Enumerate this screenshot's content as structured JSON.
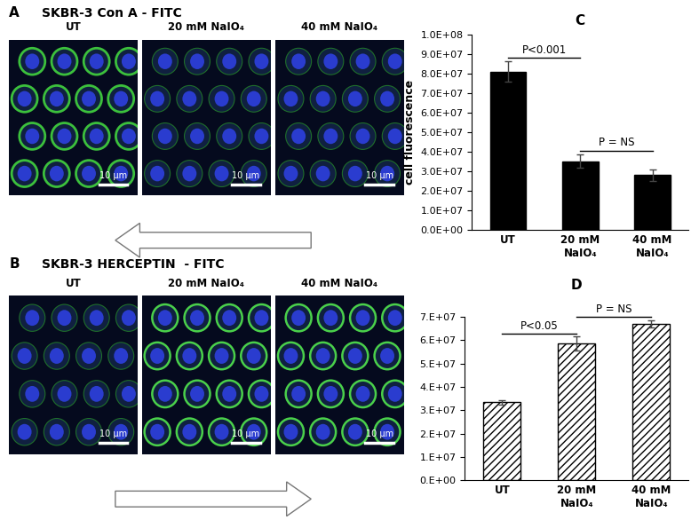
{
  "image_panels": [
    {
      "label": "A",
      "title": "SKBR-3 Con A - FITC",
      "images": [
        "UT",
        "20 mM NaIO₄",
        "40 mM NaIO₄"
      ],
      "scale_bar": "10 µm",
      "arrow": "left"
    },
    {
      "label": "B",
      "title": "SKBR-3 HERCEPTIN  - FITC",
      "images": [
        "UT",
        "20 mM NaIO₄",
        "40 mM NaIO₄"
      ],
      "scale_bar": "10 µm",
      "arrow": "right"
    }
  ],
  "chart_data": [
    {
      "type": "bar",
      "title": "C",
      "y_label": "cell fluorescence",
      "categories": [
        "UT",
        "20 mM NaIO₄",
        "40 mM NaIO₄"
      ],
      "values": [
        81000000,
        35000000,
        28000000
      ],
      "errors": [
        5000000,
        3500000,
        3000000
      ],
      "color": "#000000",
      "ylim": [
        0,
        100000000
      ],
      "yticks": [
        {
          "value": 0,
          "label": "0.0E+00"
        },
        {
          "value": 10000000,
          "label": "1.0E+07"
        },
        {
          "value": 20000000,
          "label": "2.0E+07"
        },
        {
          "value": 30000000,
          "label": "3.0E+07"
        },
        {
          "value": 40000000,
          "label": "4.0E+07"
        },
        {
          "value": 50000000,
          "label": "5.0E+07"
        },
        {
          "value": 60000000,
          "label": "6.0E+07"
        },
        {
          "value": 70000000,
          "label": "7.0E+07"
        },
        {
          "value": 80000000,
          "label": "8.0E+07"
        },
        {
          "value": 90000000,
          "label": "9.0E+07"
        },
        {
          "value": 100000000,
          "label": "1.0E+08"
        }
      ],
      "annotations": [
        {
          "text": "P<0.001",
          "between": [
            "UT",
            "20 mM NaIO₄"
          ]
        },
        {
          "text": "P = NS",
          "between": [
            "20 mM NaIO₄",
            "40 mM NaIO₄"
          ]
        }
      ]
    },
    {
      "type": "bar",
      "title": "D",
      "categories": [
        "UT",
        "20 mM NaIO₄",
        "40 mM NaIO₄"
      ],
      "values": [
        33500000,
        58500000,
        67000000
      ],
      "errors": [
        1000000,
        3000000,
        1500000
      ],
      "color": "#ffffff",
      "ylim": [
        0,
        70000000
      ],
      "yticks": [
        {
          "value": 0,
          "label": "0.E+00"
        },
        {
          "value": 10000000,
          "label": "1.E+07"
        },
        {
          "value": 20000000,
          "label": "2.E+07"
        },
        {
          "value": 30000000,
          "label": "3.E+07"
        },
        {
          "value": 40000000,
          "label": "4.E+07"
        },
        {
          "value": 50000000,
          "label": "5.E+07"
        },
        {
          "value": 60000000,
          "label": "6.E+07"
        },
        {
          "value": 70000000,
          "label": "7.E+07"
        }
      ],
      "annotations": [
        {
          "text": "P<0.05",
          "between": [
            "UT",
            "20 mM NaIO₄"
          ]
        },
        {
          "text": "P = NS",
          "between": [
            "20 mM NaIO₄",
            "40 mM NaIO₄"
          ]
        }
      ]
    }
  ]
}
